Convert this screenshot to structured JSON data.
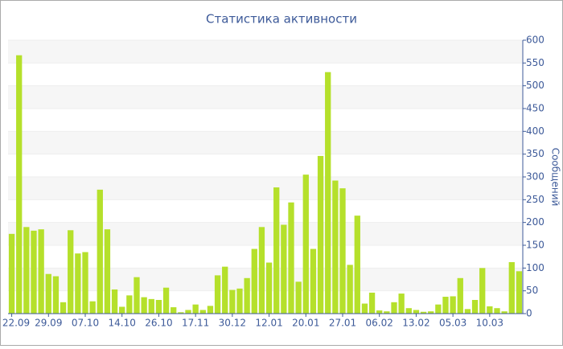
{
  "chart_data": {
    "type": "bar",
    "title": "Статистика активности",
    "y_label": "Сообщений",
    "categories": [
      "22.09",
      null,
      null,
      null,
      null,
      "29.09",
      null,
      null,
      null,
      null,
      "07.10",
      null,
      null,
      null,
      null,
      "14.10",
      null,
      null,
      null,
      null,
      "26.10",
      null,
      null,
      null,
      null,
      "17.11",
      null,
      null,
      null,
      null,
      "30.12",
      null,
      null,
      null,
      null,
      "12.01",
      null,
      null,
      null,
      null,
      "20.01",
      null,
      null,
      null,
      null,
      "27.01",
      null,
      null,
      null,
      null,
      "06.02",
      null,
      null,
      null,
      null,
      "13.02",
      null,
      null,
      null,
      null,
      "05.03",
      null,
      null,
      null,
      null,
      "10.03",
      null,
      null,
      null,
      null
    ],
    "values": [
      175,
      567,
      190,
      182,
      185,
      87,
      82,
      25,
      183,
      132,
      135,
      27,
      272,
      185,
      53,
      15,
      40,
      80,
      36,
      32,
      30,
      57,
      14,
      3,
      8,
      20,
      8,
      17,
      84,
      103,
      52,
      55,
      78,
      142,
      190,
      112,
      277,
      195,
      244,
      70,
      305,
      142,
      346,
      530,
      292,
      275,
      107,
      215,
      22,
      46,
      7,
      5,
      25,
      44,
      12,
      8,
      4,
      5,
      20,
      37,
      38,
      78,
      10,
      30,
      100,
      16,
      12,
      5,
      113,
      93
    ],
    "color": "#b5e02b",
    "ylim": [
      0,
      600
    ],
    "yticks": [
      0,
      50,
      100,
      150,
      200,
      250,
      300,
      350,
      400,
      450,
      500,
      550,
      600
    ],
    "grid": true
  }
}
